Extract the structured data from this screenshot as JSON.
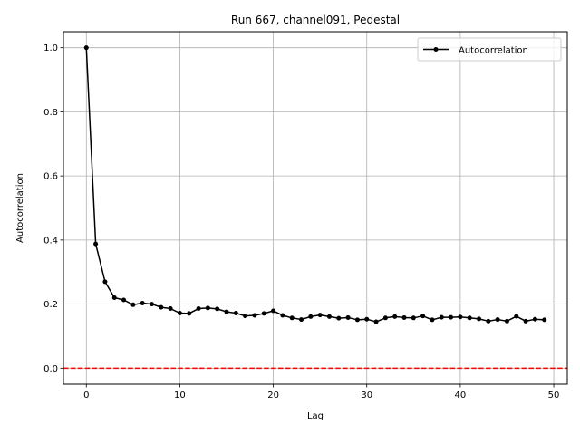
{
  "chart_data": {
    "type": "line",
    "title": "Run 667, channel091, Pedestal",
    "xlabel": "Lag",
    "ylabel": "Autocorrelation",
    "xlim": [
      -2.45,
      51.45
    ],
    "ylim": [
      -0.05,
      1.05
    ],
    "x_ticks": [
      0,
      10,
      20,
      30,
      40,
      50
    ],
    "x_tick_labels": [
      "0",
      "10",
      "20",
      "30",
      "40",
      "50"
    ],
    "y_ticks": [
      0.0,
      0.2,
      0.4,
      0.6,
      0.8,
      1.0
    ],
    "y_tick_labels": [
      "0.0",
      "0.2",
      "0.4",
      "0.6",
      "0.8",
      "1.0"
    ],
    "grid": true,
    "legend_position": "top-right",
    "series": [
      {
        "name": "Autocorrelation",
        "color": "#000000",
        "marker": "circle",
        "x": [
          0,
          1,
          2,
          3,
          4,
          5,
          6,
          7,
          8,
          9,
          10,
          11,
          12,
          13,
          14,
          15,
          16,
          17,
          18,
          19,
          20,
          21,
          22,
          23,
          24,
          25,
          26,
          27,
          28,
          29,
          30,
          31,
          32,
          33,
          34,
          35,
          36,
          37,
          38,
          39,
          40,
          41,
          42,
          43,
          44,
          45,
          46,
          47,
          48,
          49
        ],
        "values": [
          1.0,
          0.388,
          0.27,
          0.22,
          0.213,
          0.198,
          0.203,
          0.2,
          0.19,
          0.186,
          0.172,
          0.171,
          0.186,
          0.188,
          0.185,
          0.176,
          0.172,
          0.163,
          0.165,
          0.171,
          0.179,
          0.165,
          0.157,
          0.152,
          0.161,
          0.166,
          0.161,
          0.156,
          0.158,
          0.151,
          0.153,
          0.145,
          0.157,
          0.161,
          0.158,
          0.157,
          0.163,
          0.151,
          0.159,
          0.159,
          0.16,
          0.157,
          0.154,
          0.147,
          0.152,
          0.147,
          0.162,
          0.147,
          0.153,
          0.151
        ]
      }
    ],
    "reference_lines": [
      {
        "axis": "y",
        "value": 0.0,
        "color": "#ff0000",
        "style": "dashed"
      }
    ]
  }
}
